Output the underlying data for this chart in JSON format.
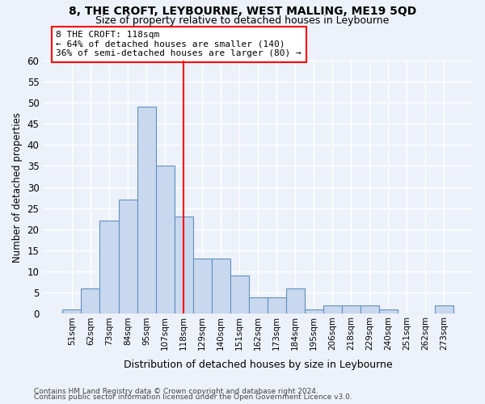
{
  "title": "8, THE CROFT, LEYBOURNE, WEST MALLING, ME19 5QD",
  "subtitle": "Size of property relative to detached houses in Leybourne",
  "xlabel": "Distribution of detached houses by size in Leybourne",
  "ylabel": "Number of detached properties",
  "categories": [
    "51sqm",
    "62sqm",
    "73sqm",
    "84sqm",
    "95sqm",
    "107sqm",
    "118sqm",
    "129sqm",
    "140sqm",
    "151sqm",
    "162sqm",
    "173sqm",
    "184sqm",
    "195sqm",
    "206sqm",
    "218sqm",
    "229sqm",
    "240sqm",
    "251sqm",
    "262sqm",
    "273sqm"
  ],
  "values": [
    1,
    6,
    22,
    27,
    49,
    35,
    23,
    13,
    13,
    9,
    4,
    4,
    6,
    1,
    2,
    2,
    2,
    1,
    0,
    0,
    2
  ],
  "bar_color": "#c8d8ee",
  "bar_edge_color": "#6090c0",
  "vline_x_index": 6,
  "vline_color": "red",
  "annotation_line0": "8 THE CROFT: 118sqm",
  "annotation_line1": "← 64% of detached houses are smaller (140)",
  "annotation_line2": "36% of semi-detached houses are larger (80) →",
  "annotation_box_color": "red",
  "ylim": [
    0,
    60
  ],
  "yticks": [
    0,
    5,
    10,
    15,
    20,
    25,
    30,
    35,
    40,
    45,
    50,
    55,
    60
  ],
  "footer1": "Contains HM Land Registry data © Crown copyright and database right 2024.",
  "footer2": "Contains public sector information licensed under the Open Government Licence v3.0.",
  "bg_color": "#edf2fa",
  "plot_bg_color": "#edf2fa"
}
